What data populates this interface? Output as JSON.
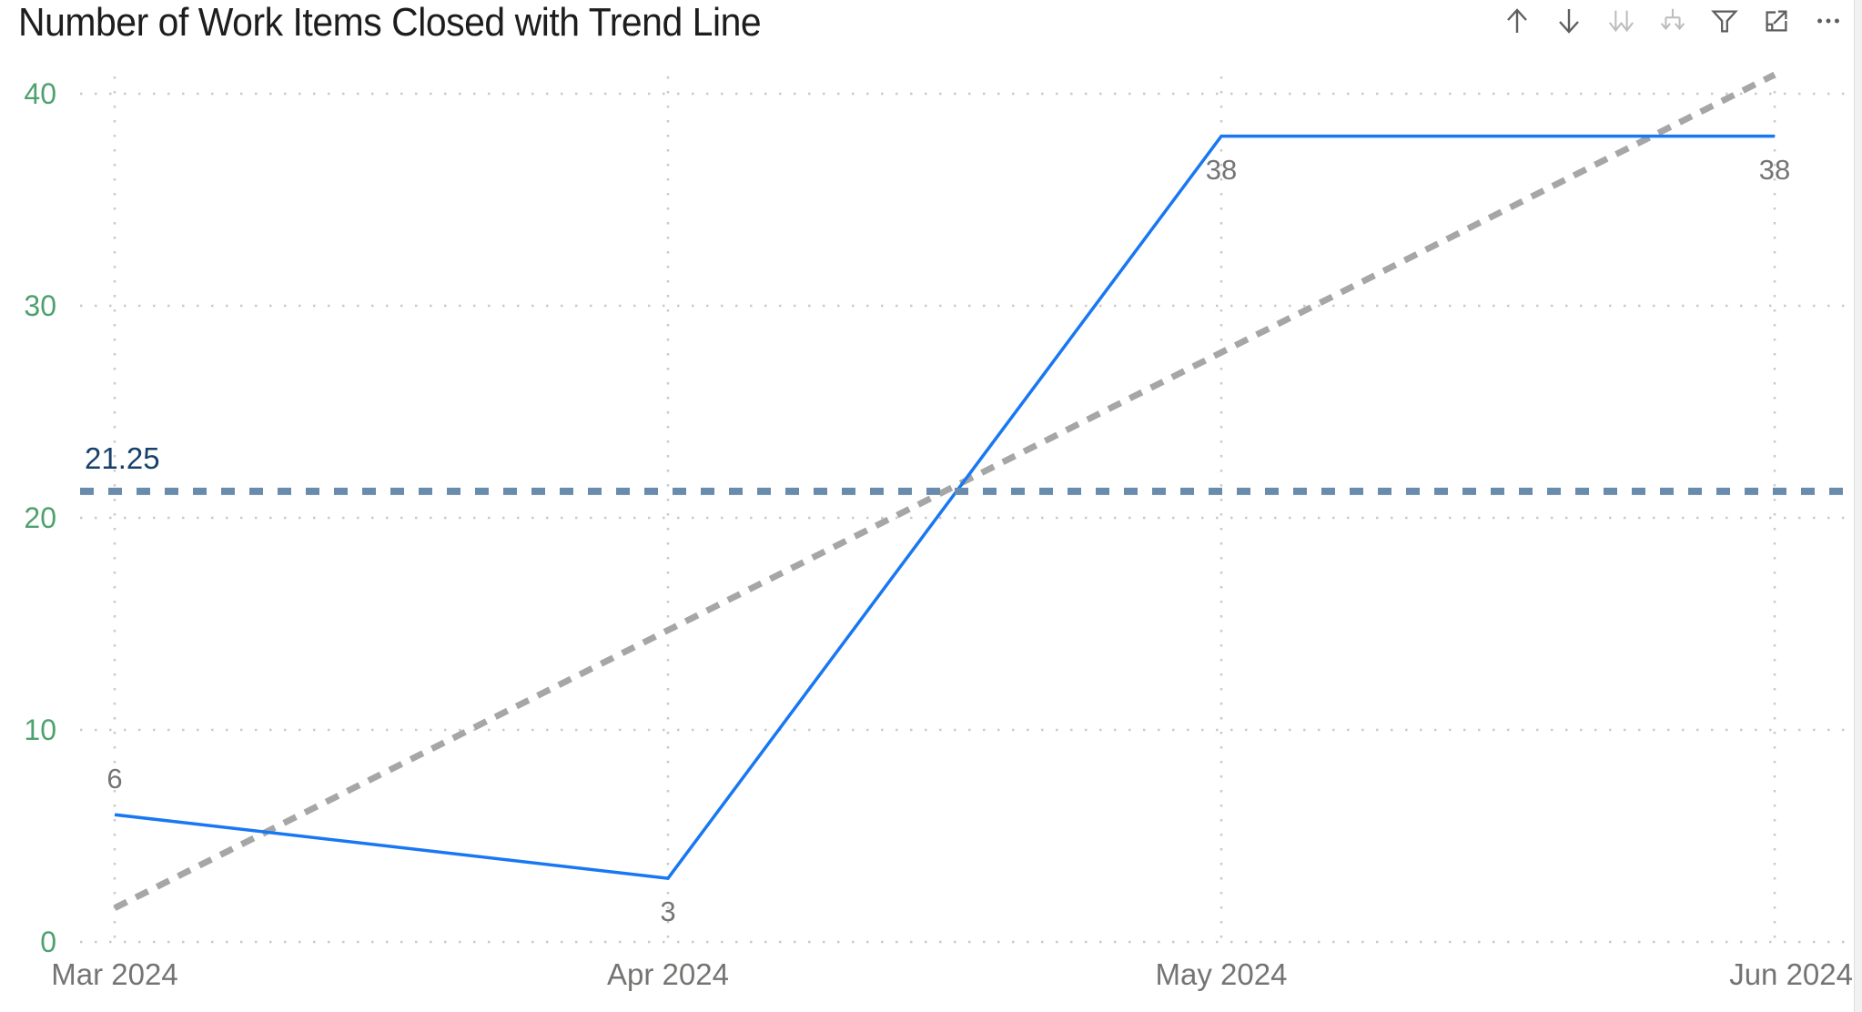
{
  "header": {
    "title": "Number of Work Items Closed with Trend Line",
    "icons": [
      {
        "name": "drill-up-icon",
        "enabled": true
      },
      {
        "name": "drill-down-icon",
        "enabled": true
      },
      {
        "name": "go-to-next-level-icon",
        "enabled": false
      },
      {
        "name": "expand-all-down-icon",
        "enabled": false
      },
      {
        "name": "filter-icon",
        "enabled": true
      },
      {
        "name": "focus-mode-icon",
        "enabled": true
      },
      {
        "name": "more-options-icon",
        "enabled": true
      }
    ]
  },
  "chart_data": {
    "type": "line",
    "title": "Number of Work Items Closed with Trend Line",
    "categories": [
      "Mar 2024",
      "Apr 2024",
      "May 2024",
      "Jun 2024"
    ],
    "series": [
      {
        "name": "Number of Work Items Closed",
        "color": "#1877F2",
        "values": [
          6,
          3,
          38,
          38
        ]
      }
    ],
    "data_labels": [
      "6",
      "3",
      "38",
      "38"
    ],
    "trend_line": {
      "style": "dashed",
      "color": "#A6A6A6",
      "start_value": 1.6,
      "end_value": 40.9
    },
    "average_line": {
      "value": 21.25,
      "label": "21.25",
      "color": "#6A8CAC",
      "label_color": "#17416B"
    },
    "y_axis": {
      "range": [
        0,
        40
      ],
      "ticks": [
        0,
        10,
        20,
        30,
        40
      ],
      "tick_color": "#4EA16E"
    },
    "x_axis": {
      "tick_color": "#767472"
    },
    "grid": {
      "dotted": true,
      "color": "#C9C9C9"
    },
    "legend": "off"
  }
}
